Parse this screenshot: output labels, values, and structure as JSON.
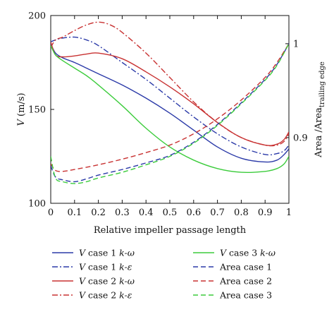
{
  "chart_data": {
    "type": "line",
    "xlabel": "Relative impeller passage length",
    "ylabel_left": {
      "italic": "V",
      "rest": " (m/s)"
    },
    "ylabel_right": {
      "base": "Area /Area",
      "sub": "trailing edge"
    },
    "xlim": [
      0,
      1
    ],
    "ylim_left": [
      100,
      200
    ],
    "ylim_right": [
      0.83,
      1.03
    ],
    "x_ticks": [
      "0",
      "0.1",
      "0.2",
      "0.3",
      "0.4",
      "0.5",
      "0.6",
      "0.7",
      "0.8",
      "0.9",
      "1"
    ],
    "y_left_ticks": [
      "100",
      "150",
      "200"
    ],
    "y_right_ticks": [
      "0.9",
      "1"
    ],
    "grid": false,
    "legend_position": "bottom, two columns",
    "series": [
      {
        "name": "V case 1 k-ω",
        "legend": {
          "italic": "V",
          "mid": " case 1 ",
          "italic2": "k-ω"
        },
        "axis": "left",
        "color": "#2b3aa8",
        "dash": "solid",
        "x": [
          0,
          0.02,
          0.05,
          0.1,
          0.15,
          0.2,
          0.3,
          0.4,
          0.5,
          0.6,
          0.7,
          0.8,
          0.9,
          0.95,
          0.98,
          1
        ],
        "y": [
          185,
          180,
          177.5,
          175,
          172,
          169,
          163,
          156,
          148,
          139,
          130,
          124,
          122,
          123,
          126,
          129
        ]
      },
      {
        "name": "V case 1 k-ε",
        "legend": {
          "italic": "V",
          "mid": " case 1 ",
          "italic2": "k-ε"
        },
        "axis": "left",
        "color": "#2b3aa8",
        "dash": "dashdot",
        "x": [
          0,
          0.02,
          0.05,
          0.1,
          0.15,
          0.2,
          0.3,
          0.4,
          0.5,
          0.6,
          0.7,
          0.8,
          0.9,
          0.95,
          0.98,
          1
        ],
        "y": [
          186,
          187,
          188,
          188.5,
          187,
          184,
          175,
          166,
          156,
          146,
          137,
          130,
          126,
          126.5,
          128,
          131
        ]
      },
      {
        "name": "V case 2 k-ω",
        "legend": {
          "italic": "V",
          "mid": " case 2 ",
          "italic2": "k-ω"
        },
        "axis": "left",
        "color": "#c83232",
        "dash": "solid",
        "x": [
          0,
          0.02,
          0.05,
          0.1,
          0.15,
          0.2,
          0.3,
          0.4,
          0.5,
          0.6,
          0.7,
          0.8,
          0.9,
          0.95,
          0.98,
          1
        ],
        "y": [
          186,
          179,
          178,
          178.5,
          179.5,
          180,
          177,
          170,
          162,
          153,
          143,
          135,
          131,
          131.5,
          134,
          138
        ]
      },
      {
        "name": "V case 2 k-ε",
        "legend": {
          "italic": "V",
          "mid": " case 2 ",
          "italic2": "k-ε"
        },
        "axis": "left",
        "color": "#c83232",
        "dash": "dashdot",
        "x": [
          0,
          0.02,
          0.05,
          0.1,
          0.15,
          0.2,
          0.25,
          0.3,
          0.4,
          0.5,
          0.6,
          0.7,
          0.8,
          0.9,
          0.95,
          0.98,
          1
        ],
        "y": [
          183,
          187,
          188.5,
          192,
          195,
          196.5,
          195,
          191,
          180,
          167,
          154,
          143,
          135,
          131,
          131,
          133,
          137
        ]
      },
      {
        "name": "V case 3 k-ω",
        "legend": {
          "italic": "V",
          "mid": " case 3 ",
          "italic2": "k-ω"
        },
        "axis": "left",
        "color": "#3ccc3c",
        "dash": "solid",
        "x": [
          0,
          0.02,
          0.05,
          0.1,
          0.15,
          0.2,
          0.3,
          0.4,
          0.5,
          0.6,
          0.7,
          0.8,
          0.9,
          0.95,
          0.98,
          1
        ],
        "y": [
          184,
          179,
          176,
          172,
          168,
          163,
          152,
          140,
          130,
          123,
          118.5,
          116.5,
          117,
          118.5,
          121,
          125
        ]
      },
      {
        "name": "Area case 1",
        "legend": {
          "italic": "",
          "mid": "Area case 1",
          "italic2": ""
        },
        "axis": "right",
        "color": "#2b3aa8",
        "dash": "dashed",
        "x": [
          0,
          0.02,
          0.05,
          0.1,
          0.15,
          0.2,
          0.3,
          0.4,
          0.5,
          0.6,
          0.7,
          0.8,
          0.9,
          0.95,
          1
        ],
        "y": [
          0.87,
          0.858,
          0.855,
          0.853,
          0.856,
          0.86,
          0.866,
          0.873,
          0.881,
          0.895,
          0.914,
          0.937,
          0.962,
          0.978,
          1.0
        ]
      },
      {
        "name": "Area case 2",
        "legend": {
          "italic": "",
          "mid": "Area case 2",
          "italic2": ""
        },
        "axis": "right",
        "color": "#c83232",
        "dash": "dashed",
        "x": [
          0,
          0.02,
          0.05,
          0.1,
          0.2,
          0.3,
          0.4,
          0.5,
          0.6,
          0.7,
          0.8,
          0.9,
          0.95,
          1
        ],
        "y": [
          0.872,
          0.865,
          0.864,
          0.866,
          0.871,
          0.877,
          0.884,
          0.892,
          0.904,
          0.92,
          0.94,
          0.964,
          0.98,
          1.0
        ]
      },
      {
        "name": "Area case 3",
        "legend": {
          "italic": "",
          "mid": "Area case 3",
          "italic2": ""
        },
        "axis": "right",
        "color": "#3ccc3c",
        "dash": "dashed",
        "x": [
          0,
          0.02,
          0.05,
          0.1,
          0.15,
          0.2,
          0.3,
          0.4,
          0.5,
          0.6,
          0.7,
          0.8,
          0.9,
          0.95,
          1
        ],
        "y": [
          0.88,
          0.857,
          0.853,
          0.851,
          0.853,
          0.857,
          0.863,
          0.871,
          0.88,
          0.894,
          0.913,
          0.936,
          0.961,
          0.977,
          1.0
        ]
      }
    ]
  }
}
